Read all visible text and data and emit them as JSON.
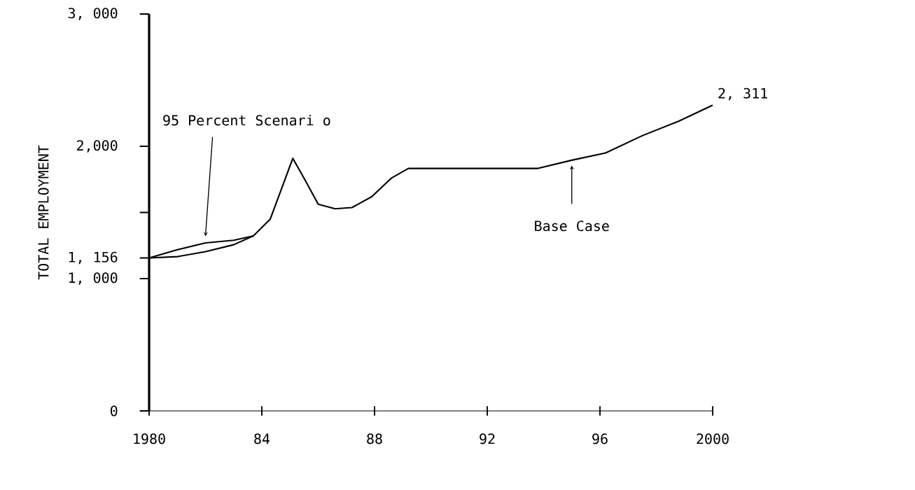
{
  "chart_data": {
    "type": "line",
    "ylabel": "TOTAL EMPLOYMENT",
    "xlim": [
      1980,
      2000
    ],
    "xticks": [
      {
        "value": 1980,
        "label": "1980"
      },
      {
        "value": 1984,
        "label": "84"
      },
      {
        "value": 1988,
        "label": "88"
      },
      {
        "value": 1992,
        "label": "92"
      },
      {
        "value": 1996,
        "label": "96"
      },
      {
        "value": 2000,
        "label": "2000"
      }
    ],
    "ylim": [
      0,
      3000
    ],
    "yticks": [
      {
        "value": 0,
        "label": "0"
      },
      {
        "value": 1000,
        "label": "1, 000"
      },
      {
        "value": 1156,
        "label": "1, 156"
      },
      {
        "value": 1500,
        "label": null
      },
      {
        "value": 2000,
        "label": "2,000"
      },
      {
        "value": 3000,
        "label": "3, 000"
      }
    ],
    "series": [
      {
        "color": "#000000",
        "x": [
          1980,
          1981,
          1982,
          1983,
          1983.7
        ],
        "values": [
          1156,
          1218,
          1270,
          1290,
          1323
        ]
      },
      {
        "color": "#000000",
        "x": [
          1980,
          1981,
          1982,
          1983,
          1983.7,
          1984.3,
          1985.1,
          1985.6,
          1986.0,
          1986.6,
          1987.2,
          1987.9,
          1988.6,
          1989.2,
          1993.8,
          1995.0,
          1996.2,
          1997.5,
          1998.8,
          2000
        ],
        "values": [
          1156,
          1166,
          1204,
          1256,
          1323,
          1450,
          1909,
          1720,
          1562,
          1528,
          1537,
          1619,
          1760,
          1833,
          1833,
          1895,
          1950,
          2080,
          2190,
          2311
        ]
      }
    ],
    "annotations": [
      {
        "text": "2, 311",
        "x": 2000,
        "y": 2311
      },
      "95 Percent Scenari o",
      "Base Case"
    ],
    "grid": false,
    "marker": "none",
    "line_style": "solid"
  }
}
